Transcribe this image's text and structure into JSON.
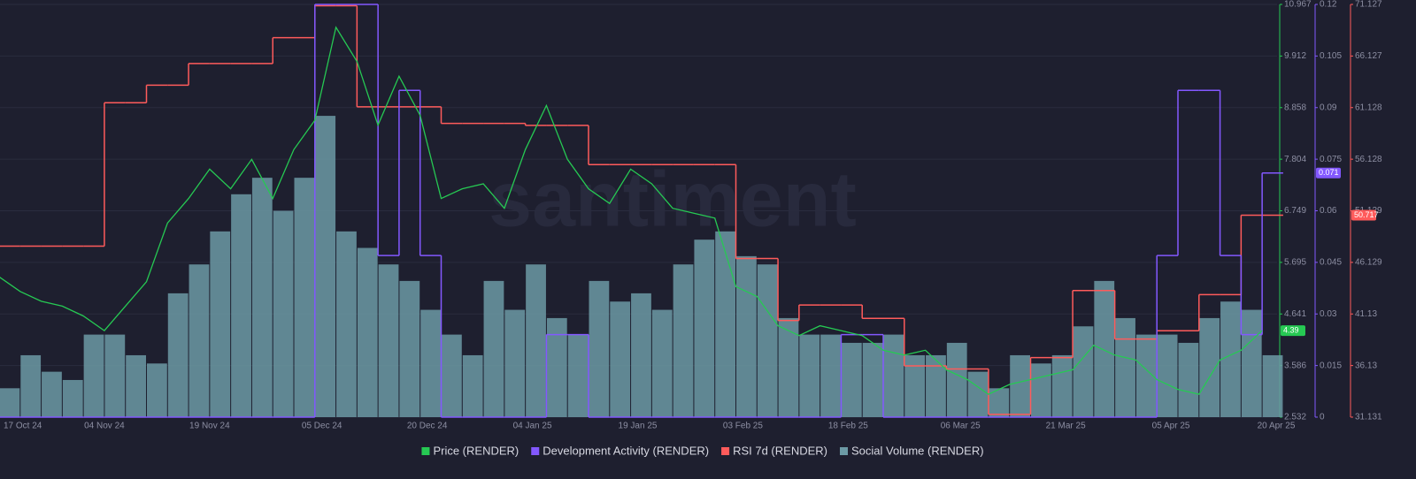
{
  "chart_data": {
    "type": "combo",
    "watermark": "santiment",
    "x": [
      "2024-10-20",
      "2024-10-23",
      "2024-10-26",
      "2024-10-29",
      "2024-11-01",
      "2024-11-04",
      "2024-11-07",
      "2024-11-10",
      "2024-11-13",
      "2024-11-16",
      "2024-11-19",
      "2024-11-22",
      "2024-11-25",
      "2024-11-28",
      "2024-12-01",
      "2024-12-04",
      "2024-12-07",
      "2024-12-10",
      "2024-12-13",
      "2024-12-16",
      "2024-12-19",
      "2024-12-22",
      "2024-12-25",
      "2024-12-28",
      "2024-12-31",
      "2025-01-03",
      "2025-01-06",
      "2025-01-09",
      "2025-01-12",
      "2025-01-15",
      "2025-01-18",
      "2025-01-21",
      "2025-01-24",
      "2025-01-27",
      "2025-01-30",
      "2025-02-02",
      "2025-02-05",
      "2025-02-08",
      "2025-02-11",
      "2025-02-14",
      "2025-02-17",
      "2025-02-20",
      "2025-02-23",
      "2025-02-26",
      "2025-03-01",
      "2025-03-04",
      "2025-03-07",
      "2025-03-10",
      "2025-03-13",
      "2025-03-16",
      "2025-03-19",
      "2025-03-22",
      "2025-03-25",
      "2025-03-28",
      "2025-03-31",
      "2025-04-03",
      "2025-04-06",
      "2025-04-09",
      "2025-04-12",
      "2025-04-15",
      "2025-04-18"
    ],
    "xlim": [
      "2024-10-20",
      "2025-04-20"
    ],
    "xticks": [
      {
        "value": "2024-10-17",
        "label": "17 Oct 24"
      },
      {
        "value": "2024-11-04",
        "label": "04 Nov 24"
      },
      {
        "value": "2024-11-19",
        "label": "19 Nov 24"
      },
      {
        "value": "2024-12-05",
        "label": "05 Dec 24"
      },
      {
        "value": "2024-12-20",
        "label": "20 Dec 24"
      },
      {
        "value": "2025-01-04",
        "label": "04 Jan 25"
      },
      {
        "value": "2025-01-19",
        "label": "19 Jan 25"
      },
      {
        "value": "2025-02-03",
        "label": "03 Feb 25"
      },
      {
        "value": "2025-02-18",
        "label": "18 Feb 25"
      },
      {
        "value": "2025-03-06",
        "label": "06 Mar 25"
      },
      {
        "value": "2025-03-21",
        "label": "21 Mar 25"
      },
      {
        "value": "2025-04-05",
        "label": "05 Apr 25"
      },
      {
        "value": "2025-04-20",
        "label": "20 Apr 25"
      }
    ],
    "ylim": [
      2.532,
      10.967
    ],
    "yticks": [
      2.532,
      3.586,
      4.641,
      5.695,
      6.749,
      7.804,
      8.858,
      9.912,
      10.967
    ],
    "y2lim": [
      0,
      0.12
    ],
    "y2ticks": [
      0,
      0.015,
      0.03,
      0.045,
      0.06,
      0.075,
      0.09,
      0.105,
      0.12
    ],
    "y3lim": [
      31.131,
      71.127
    ],
    "y3ticks": [
      31.131,
      36.13,
      41.13,
      46.129,
      51.129,
      56.128,
      61.128,
      66.127,
      71.127
    ],
    "grid": true,
    "legend": "bottom",
    "series": [
      {
        "name": "Price (RENDER)",
        "type": "line",
        "axis": "y",
        "color": "#26c953",
        "last_label": "4.39",
        "values": [
          5.4,
          5.1,
          4.9,
          4.8,
          4.6,
          4.3,
          4.8,
          5.3,
          6.5,
          7.0,
          7.6,
          7.2,
          7.8,
          7.0,
          8.0,
          8.6,
          10.5,
          9.8,
          8.5,
          9.5,
          8.7,
          7.0,
          7.2,
          7.3,
          6.8,
          8.0,
          8.9,
          7.8,
          7.2,
          6.9,
          7.6,
          7.3,
          6.8,
          6.7,
          6.6,
          5.2,
          5.0,
          4.4,
          4.2,
          4.4,
          4.3,
          4.2,
          3.9,
          3.8,
          3.9,
          3.5,
          3.3,
          3.0,
          3.2,
          3.3,
          3.4,
          3.5,
          4.0,
          3.8,
          3.7,
          3.3,
          3.1,
          3.0,
          3.7,
          3.9,
          4.3
        ]
      },
      {
        "name": "Development Activity (RENDER)",
        "type": "step",
        "axis": "y2",
        "color": "#8358ff",
        "last_label": "0.071",
        "values": [
          0,
          0,
          0,
          0,
          0,
          0,
          0,
          0,
          0,
          0,
          0,
          0,
          0,
          0,
          0,
          0.12,
          0.12,
          0.12,
          0.047,
          0.095,
          0.047,
          0,
          0,
          0,
          0,
          0,
          0.024,
          0.024,
          0,
          0,
          0,
          0,
          0,
          0,
          0,
          0,
          0,
          0,
          0,
          0,
          0.024,
          0.024,
          0,
          0,
          0,
          0,
          0,
          0,
          0,
          0,
          0,
          0,
          0,
          0,
          0,
          0.047,
          0.095,
          0.095,
          0.047,
          0.024,
          0.071
        ]
      },
      {
        "name": "RSI 7d (RENDER)",
        "type": "step",
        "axis": "y3",
        "color": "#ff5b5b",
        "last_label": "50.717",
        "values": [
          47.7,
          47.7,
          47.7,
          47.7,
          47.7,
          61.6,
          61.6,
          63.3,
          63.3,
          65.4,
          65.4,
          65.4,
          65.4,
          67.9,
          67.9,
          71,
          71,
          61.2,
          61.2,
          61.2,
          61.2,
          59.6,
          59.6,
          59.6,
          59.6,
          59.4,
          59.4,
          59.4,
          55.6,
          55.6,
          55.6,
          55.6,
          55.6,
          55.6,
          55.6,
          46.5,
          46.5,
          40.5,
          42.0,
          42.0,
          42.0,
          40.7,
          40.7,
          36.1,
          36.1,
          35.8,
          35.8,
          31.4,
          31.4,
          36.9,
          36.9,
          43.4,
          43.4,
          38.7,
          38.7,
          39.5,
          39.5,
          43.0,
          43.0,
          50.7,
          50.7
        ]
      },
      {
        "name": "Social Volume (RENDER)",
        "type": "bar",
        "color": "#6c9aa5",
        "values": [
          7,
          15,
          11,
          9,
          20,
          20,
          15,
          13,
          30,
          37,
          45,
          54,
          58,
          50,
          58,
          73,
          45,
          41,
          37,
          33,
          26,
          20,
          15,
          33,
          26,
          37,
          24,
          20,
          33,
          28,
          30,
          26,
          37,
          43,
          45,
          39,
          37,
          24,
          20,
          20,
          18,
          18,
          20,
          15,
          15,
          18,
          11,
          7,
          15,
          13,
          15,
          22,
          33,
          24,
          20,
          20,
          18,
          24,
          28,
          26,
          15
        ]
      }
    ]
  }
}
